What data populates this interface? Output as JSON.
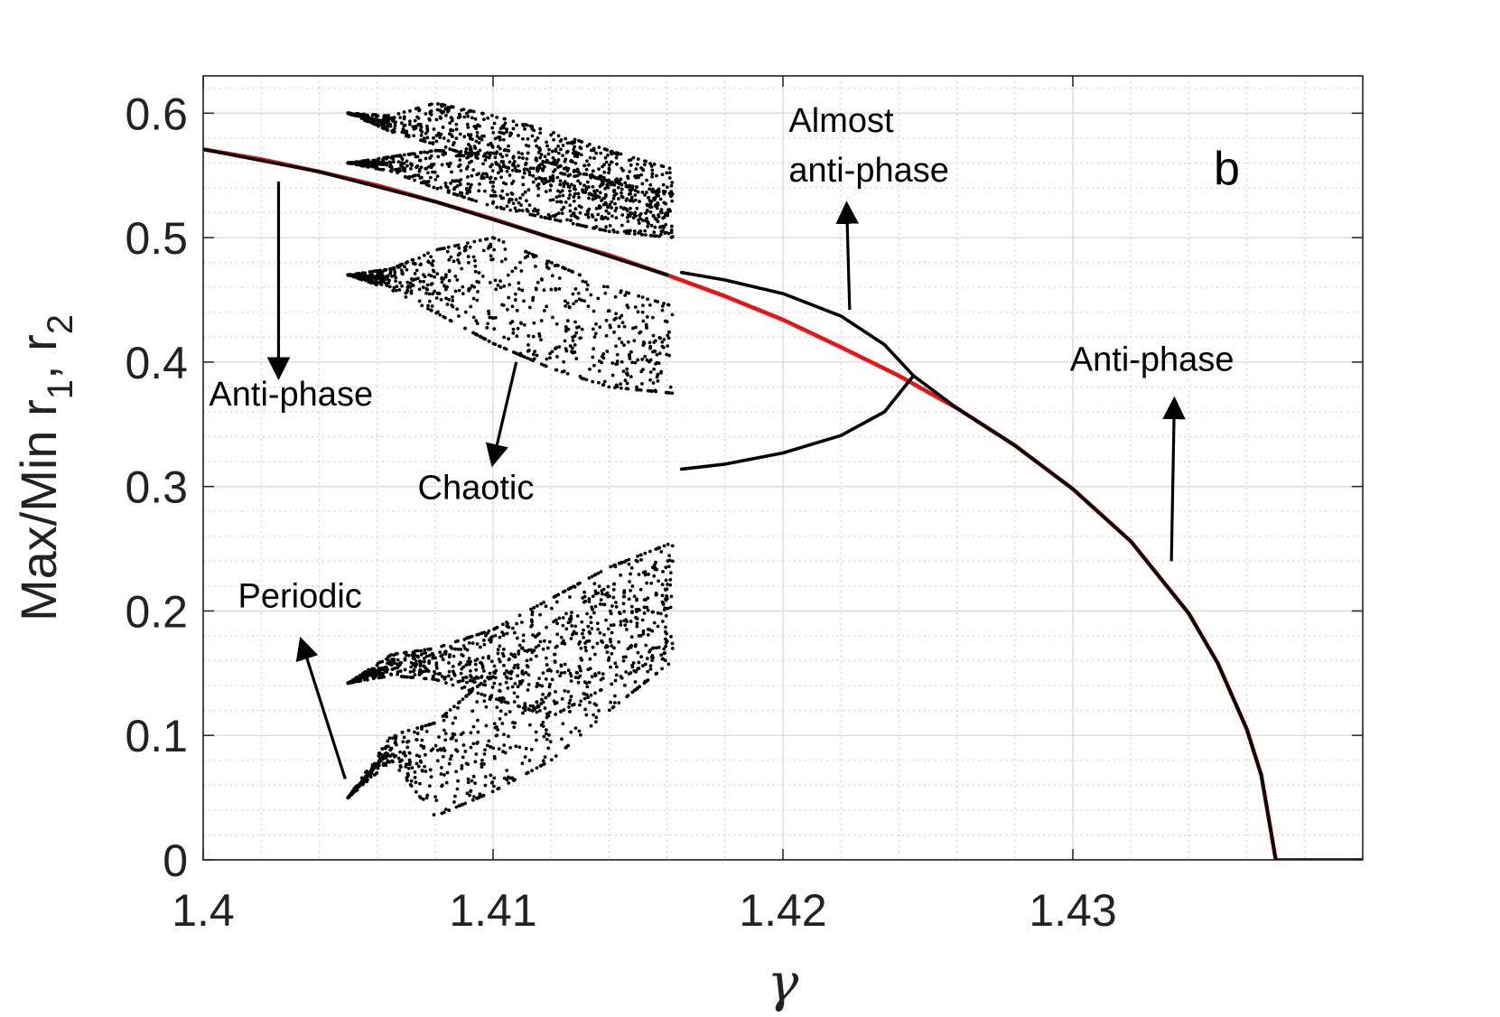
{
  "chart_data": {
    "type": "scatter",
    "panel_label": "b",
    "xlabel": "γ",
    "ylabel": "Max/Min r",
    "ylabel_sub1": "1",
    "ylabel_sep": ", r",
    "ylabel_sub2": "2",
    "xlim": [
      1.4,
      1.44
    ],
    "ylim": [
      0,
      0.63
    ],
    "xticks": [
      1.4,
      1.41,
      1.42,
      1.43
    ],
    "xtick_labels": [
      "1.4",
      "1.41",
      "1.42",
      "1.43"
    ],
    "yticks": [
      0,
      0.1,
      0.2,
      0.3,
      0.4,
      0.5,
      0.6
    ],
    "ytick_labels": [
      "0",
      "0.1",
      "0.2",
      "0.3",
      "0.4",
      "0.5",
      "0.6"
    ],
    "grid": true,
    "minor_grid": true,
    "colors": {
      "branch": "#ee1111",
      "points": "#000000",
      "frame": "#222222"
    },
    "series": [
      {
        "color": "#ee1111",
        "x": [
          1.4,
          1.402,
          1.404,
          1.406,
          1.408,
          1.41,
          1.412,
          1.414,
          1.416,
          1.418,
          1.42,
          1.422,
          1.424,
          1.426,
          1.428,
          1.43,
          1.432,
          1.434,
          1.435,
          1.436,
          1.4365,
          1.437
        ],
        "y": [
          0.571,
          0.563,
          0.553,
          0.542,
          0.529,
          0.515,
          0.5,
          0.486,
          0.47,
          0.453,
          0.434,
          0.412,
          0.389,
          0.363,
          0.333,
          0.298,
          0.256,
          0.198,
          0.158,
          0.105,
          0.068,
          0.0
        ]
      },
      {
        "color": "#000000",
        "x": [
          1.4,
          1.404,
          1.408,
          1.412,
          1.416
        ],
        "y": [
          0.571,
          0.553,
          0.529,
          0.5,
          0.47
        ]
      },
      {
        "color": "#000000",
        "x": [
          1.4165,
          1.418,
          1.42,
          1.422,
          1.4235,
          1.4245
        ],
        "y": [
          0.472,
          0.466,
          0.455,
          0.437,
          0.414,
          0.389
        ]
      },
      {
        "color": "#000000",
        "x": [
          1.4165,
          1.418,
          1.42,
          1.422,
          1.4235,
          1.4245
        ],
        "y": [
          0.314,
          0.318,
          0.327,
          0.341,
          0.36,
          0.389
        ]
      },
      {
        "color": "#000000",
        "x": [
          1.4245,
          1.426,
          1.428,
          1.43,
          1.432,
          1.434,
          1.435,
          1.436,
          1.4365,
          1.437
        ],
        "y": [
          0.389,
          0.363,
          0.333,
          0.298,
          0.256,
          0.198,
          0.158,
          0.105,
          0.068,
          0.0
        ]
      },
      {
        "color": "#000000",
        "x": [
          1.437,
          1.4385,
          1.44
        ],
        "y": [
          0.0,
          0.0,
          0.0
        ]
      }
    ],
    "scatter_bands": [
      {
        "color": "#000000",
        "x": [
          1.405,
          1.4065,
          1.408,
          1.41,
          1.412,
          1.414,
          1.4162
        ],
        "y_lower": [
          0.6,
          0.585,
          0.575,
          0.56,
          0.545,
          0.53,
          0.5
        ],
        "y_upper": [
          0.6,
          0.598,
          0.608,
          0.598,
          0.585,
          0.57,
          0.555
        ]
      },
      {
        "color": "#000000",
        "x": [
          1.405,
          1.4065,
          1.408,
          1.41,
          1.412,
          1.414,
          1.4162
        ],
        "y_lower": [
          0.56,
          0.553,
          0.54,
          0.525,
          0.515,
          0.505,
          0.5
        ],
        "y_upper": [
          0.56,
          0.565,
          0.57,
          0.568,
          0.56,
          0.545,
          0.535
        ]
      },
      {
        "color": "#000000",
        "x": [
          1.405,
          1.4065,
          1.408,
          1.41,
          1.412,
          1.414,
          1.4162
        ],
        "y_lower": [
          0.47,
          0.458,
          0.44,
          0.415,
          0.395,
          0.38,
          0.375
        ],
        "y_upper": [
          0.47,
          0.475,
          0.49,
          0.5,
          0.48,
          0.46,
          0.445
        ]
      },
      {
        "color": "#000000",
        "x": [
          1.405,
          1.4065,
          1.408,
          1.41,
          1.412,
          1.414,
          1.4162
        ],
        "y_lower": [
          0.142,
          0.148,
          0.145,
          0.13,
          0.115,
          0.14,
          0.17
        ],
        "y_upper": [
          0.142,
          0.165,
          0.17,
          0.185,
          0.21,
          0.235,
          0.255
        ]
      },
      {
        "color": "#000000",
        "x": [
          1.405,
          1.4065,
          1.408,
          1.41,
          1.412,
          1.414,
          1.4162
        ],
        "y_lower": [
          0.05,
          0.08,
          0.035,
          0.055,
          0.08,
          0.12,
          0.16
        ],
        "y_upper": [
          0.05,
          0.1,
          0.11,
          0.15,
          0.19,
          0.22,
          0.24
        ]
      }
    ],
    "annotations": [
      {
        "text": "Almost",
        "x": 1.4202,
        "y": 0.585,
        "arrow_from": [
          1.4223,
          0.442
        ],
        "arrow_to": [
          1.4222,
          0.525
        ]
      },
      {
        "text": "anti-phase",
        "x": 1.4202,
        "y": 0.545
      },
      {
        "text": "Anti-phase",
        "x": 1.4002,
        "y": 0.365,
        "arrow_from": [
          1.4026,
          0.545
        ],
        "arrow_to": [
          1.4026,
          0.39
        ]
      },
      {
        "text": "Chaotic",
        "x": 1.4074,
        "y": 0.29,
        "arrow_from": [
          1.4108,
          0.4
        ],
        "arrow_to": [
          1.41,
          0.32
        ]
      },
      {
        "text": "Anti-phase",
        "x": 1.4299,
        "y": 0.393,
        "arrow_from": [
          1.4334,
          0.24
        ],
        "arrow_to": [
          1.4335,
          0.368
        ]
      },
      {
        "text": "Periodic",
        "x": 1.4012,
        "y": 0.203,
        "arrow_from": [
          1.4049,
          0.065
        ],
        "arrow_to": [
          1.4034,
          0.175
        ]
      }
    ]
  }
}
